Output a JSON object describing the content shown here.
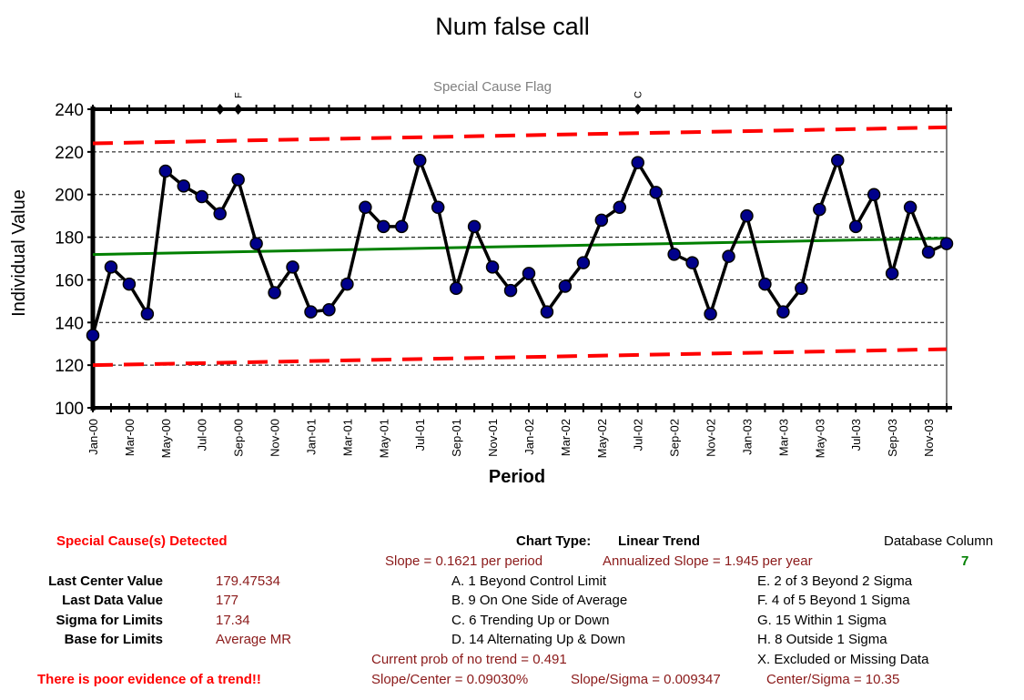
{
  "chart_data": {
    "type": "line",
    "title": "Num false call",
    "subtitle": "Special Cause Flag",
    "xlabel": "Period",
    "ylabel": "Individual Value",
    "ylim": [
      100,
      240
    ],
    "yticks": [
      100,
      120,
      140,
      160,
      180,
      200,
      220,
      240
    ],
    "grid": true,
    "x": [
      "Jan-00",
      "Feb-00",
      "Mar-00",
      "Apr-00",
      "May-00",
      "Jun-00",
      "Jul-00",
      "Aug-00",
      "Sep-00",
      "Oct-00",
      "Nov-00",
      "Dec-00",
      "Jan-01",
      "Feb-01",
      "Mar-01",
      "Apr-01",
      "May-01",
      "Jun-01",
      "Jul-01",
      "Aug-01",
      "Sep-01",
      "Oct-01",
      "Nov-01",
      "Dec-01",
      "Jan-02",
      "Feb-02",
      "Mar-02",
      "Apr-02",
      "May-02",
      "Jun-02",
      "Jul-02",
      "Aug-02",
      "Sep-02",
      "Oct-02",
      "Nov-02",
      "Dec-02",
      "Jan-03",
      "Feb-03",
      "Mar-03",
      "Apr-03",
      "May-03",
      "Jun-03",
      "Jul-03",
      "Aug-03",
      "Sep-03",
      "Oct-03",
      "Nov-03",
      "Dec-03"
    ],
    "xtick_labels": [
      "Jan-00",
      "Mar-00",
      "May-00",
      "Jul-00",
      "Sep-00",
      "Nov-00",
      "Jan-01",
      "Mar-01",
      "May-01",
      "Jul-01",
      "Sep-01",
      "Nov-01",
      "Jan-02",
      "Mar-02",
      "May-02",
      "Jul-02",
      "Sep-02",
      "Nov-02",
      "Jan-03",
      "Mar-03",
      "May-03",
      "Jul-03",
      "Sep-03",
      "Nov-03"
    ],
    "series": [
      {
        "values": [
          134,
          166,
          158,
          144,
          211,
          204,
          199,
          191,
          207,
          177,
          154,
          166,
          145,
          146,
          158,
          194,
          185,
          185,
          216,
          194,
          156,
          185,
          166,
          155,
          163,
          145,
          157,
          168,
          188,
          194,
          215,
          201,
          172,
          168,
          144,
          171,
          190,
          158,
          145,
          156,
          193,
          216,
          185,
          200,
          163,
          194,
          173,
          177
        ],
        "color": "#000000",
        "marker_color": "#00008b"
      }
    ],
    "center_line": {
      "start": 171.86,
      "end": 179.47534,
      "color": "#008000"
    },
    "upper_limit": {
      "start": 224.0,
      "end": 231.5,
      "color": "#ff0000"
    },
    "lower_limit": {
      "start": 120.0,
      "end": 127.5,
      "color": "#ff0000"
    },
    "special_cause_flags": [
      {
        "period": "Aug-00",
        "label": ""
      },
      {
        "period": "Sep-00",
        "label": "F"
      },
      {
        "period": "Jul-02",
        "label": "C"
      }
    ]
  },
  "stats": {
    "special_causes_label": "Special Cause(s) Detected",
    "chart_type_label": "Chart Type:",
    "chart_type_value": "Linear Trend",
    "database_column_label": "Database Column",
    "database_column_value": "7",
    "slope_text": "Slope = 0.1621 per period",
    "annualized_slope_text": "Annualized Slope = 1.945 per year",
    "last_center_label": "Last Center Value",
    "last_center_value": "179.47534",
    "last_data_label": "Last Data Value",
    "last_data_value": "177",
    "sigma_label": "Sigma for Limits",
    "sigma_value": "17.34",
    "base_label": "Base for Limits",
    "base_value": "Average MR",
    "rules": {
      "a": "A.  1 Beyond Control Limit",
      "b": "B.  9 On One Side of Average",
      "c": "C.  6 Trending Up or Down",
      "d": "D.  14 Alternating  Up & Down",
      "e": "E.   2 of 3 Beyond 2 Sigma",
      "f": "F.   4 of 5 Beyond 1 Sigma",
      "g": "G.   15 Within 1 Sigma",
      "h": "H.   8 Outside 1 Sigma",
      "x": "X.   Excluded or Missing Data"
    },
    "prob_text": "Current prob of no trend = 0.491",
    "slope_center_text": "Slope/Center = 0.09030%",
    "slope_sigma_text": "Slope/Sigma = 0.009347",
    "center_sigma_text": "Center/Sigma = 10.35",
    "trend_warning": "There is poor evidence of a trend!!"
  },
  "colors": {
    "data_line": "#000000",
    "marker": "#00008b",
    "center": "#008000",
    "limits": "#ff0000",
    "grid": "#000000",
    "flag_text": "#808080"
  }
}
